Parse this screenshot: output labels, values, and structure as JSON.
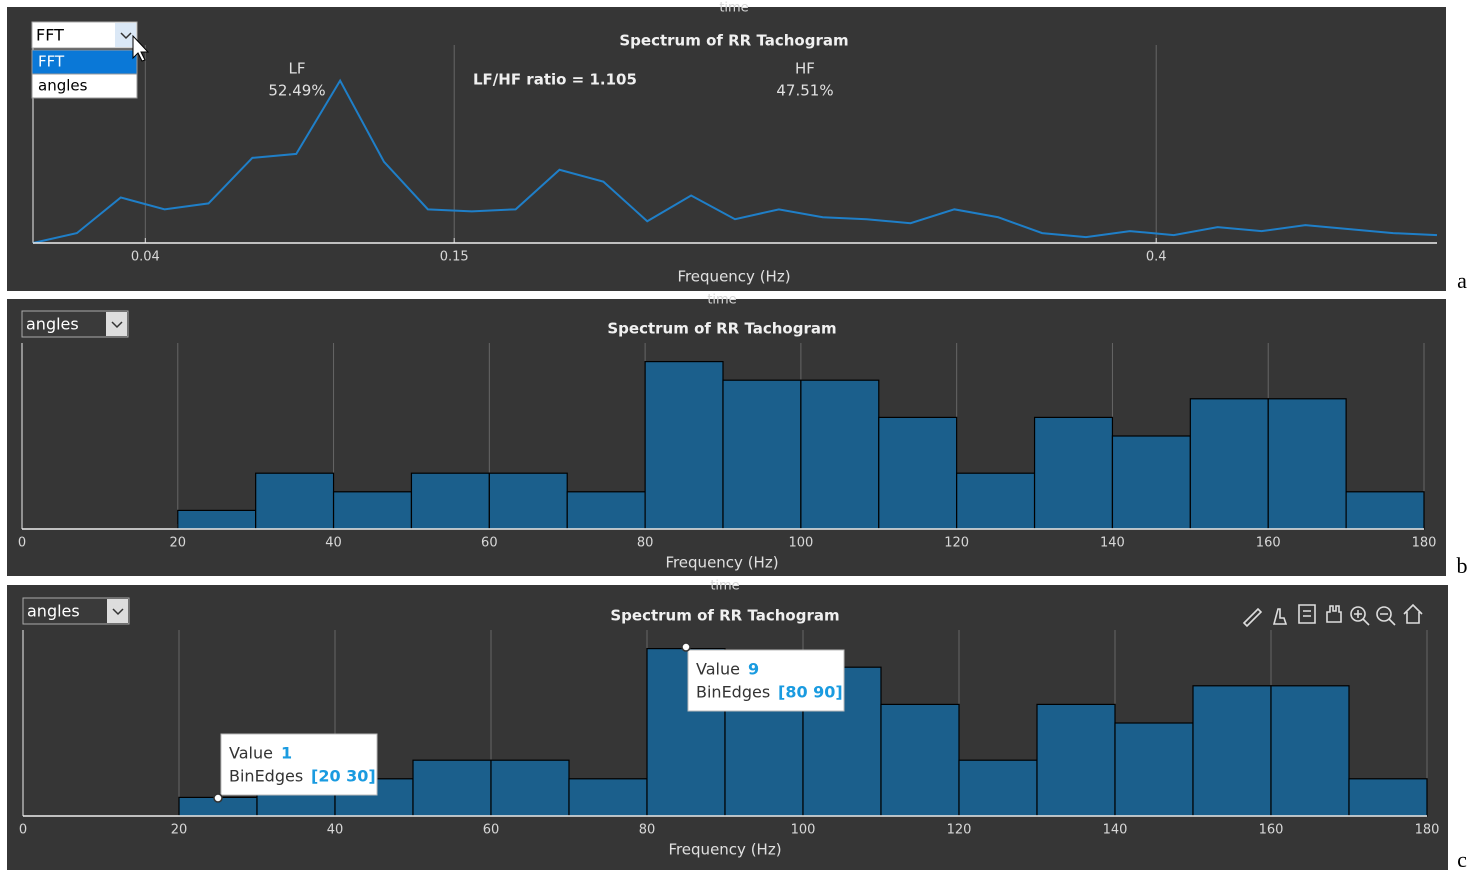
{
  "chart_data": [
    {
      "type": "line",
      "panel": "a",
      "header": "time",
      "title": "Spectrum of RR Tachogram",
      "xlabel": "Frequency (Hz)",
      "dropdown": {
        "value": "FFT",
        "options": [
          "FFT",
          "angles"
        ]
      },
      "annotations": [
        "LF",
        "52.49%",
        "LF/HF ratio = 1.105",
        "HF",
        "47.51%"
      ],
      "x": [
        0,
        0.015625,
        0.03125,
        0.046875,
        0.0625,
        0.078125,
        0.09375,
        0.109375,
        0.125,
        0.140625,
        0.15625,
        0.171875,
        0.1875,
        0.203125,
        0.21875,
        0.234375,
        0.25,
        0.265625,
        0.28125,
        0.296875,
        0.3125,
        0.328125,
        0.34375,
        0.359375,
        0.375,
        0.390625,
        0.40625,
        0.421875,
        0.4375,
        0.453125,
        0.46875,
        0.484375,
        0.5
      ],
      "values": [
        0,
        0.05,
        0.23,
        0.17,
        0.2,
        0.43,
        0.45,
        0.82,
        0.41,
        0.17,
        0.16,
        0.17,
        0.37,
        0.31,
        0.11,
        0.24,
        0.12,
        0.17,
        0.13,
        0.12,
        0.1,
        0.17,
        0.13,
        0.05,
        0.03,
        0.06,
        0.04,
        0.08,
        0.06,
        0.09,
        0.07,
        0.05,
        0.04
      ],
      "color": "#1f7fc8",
      "xlim": [
        0,
        0.5
      ],
      "xticks": [
        0.04,
        0.15,
        0.4
      ],
      "ylim": [
        0,
        1
      ],
      "grid": true
    },
    {
      "type": "histogram",
      "panel": "b",
      "header": "time",
      "title": "Spectrum of RR Tachogram",
      "xlabel": "Frequency (Hz)",
      "dropdown": {
        "value": "angles"
      },
      "bins": [
        0,
        10,
        20,
        30,
        40,
        50,
        60,
        70,
        80,
        90,
        100,
        110,
        120,
        130,
        140,
        150,
        160,
        170,
        180
      ],
      "values": [
        0,
        0,
        1,
        3,
        2,
        3,
        3,
        2,
        9,
        8,
        8,
        6,
        3,
        6,
        5,
        7,
        7,
        2
      ],
      "color": "#1b5f8c",
      "xlim": [
        0,
        180
      ],
      "xticks": [
        0,
        20,
        40,
        60,
        80,
        100,
        120,
        140,
        160,
        180
      ],
      "ylim": [
        0,
        10
      ],
      "grid": true
    },
    {
      "type": "histogram",
      "panel": "c",
      "header": "time",
      "title": "Spectrum of RR Tachogram",
      "xlabel": "Frequency (Hz)",
      "dropdown": {
        "value": "angles"
      },
      "bins": [
        0,
        10,
        20,
        30,
        40,
        50,
        60,
        70,
        80,
        90,
        100,
        110,
        120,
        130,
        140,
        150,
        160,
        170,
        180
      ],
      "values": [
        0,
        0,
        1,
        3,
        2,
        3,
        3,
        2,
        9,
        8,
        8,
        6,
        3,
        6,
        5,
        7,
        7,
        2
      ],
      "color": "#1b5f8c",
      "xlim": [
        0,
        180
      ],
      "xticks": [
        0,
        20,
        40,
        60,
        80,
        100,
        120,
        140,
        160,
        180
      ],
      "ylim": [
        0,
        10
      ],
      "grid": true,
      "datatips": [
        {
          "value_label": "Value",
          "value": 1,
          "edges_label": "BinEdges",
          "edges": "[20 30]"
        },
        {
          "value_label": "Value",
          "value": 9,
          "edges_label": "BinEdges",
          "edges": "[80 90]"
        }
      ]
    }
  ]
}
